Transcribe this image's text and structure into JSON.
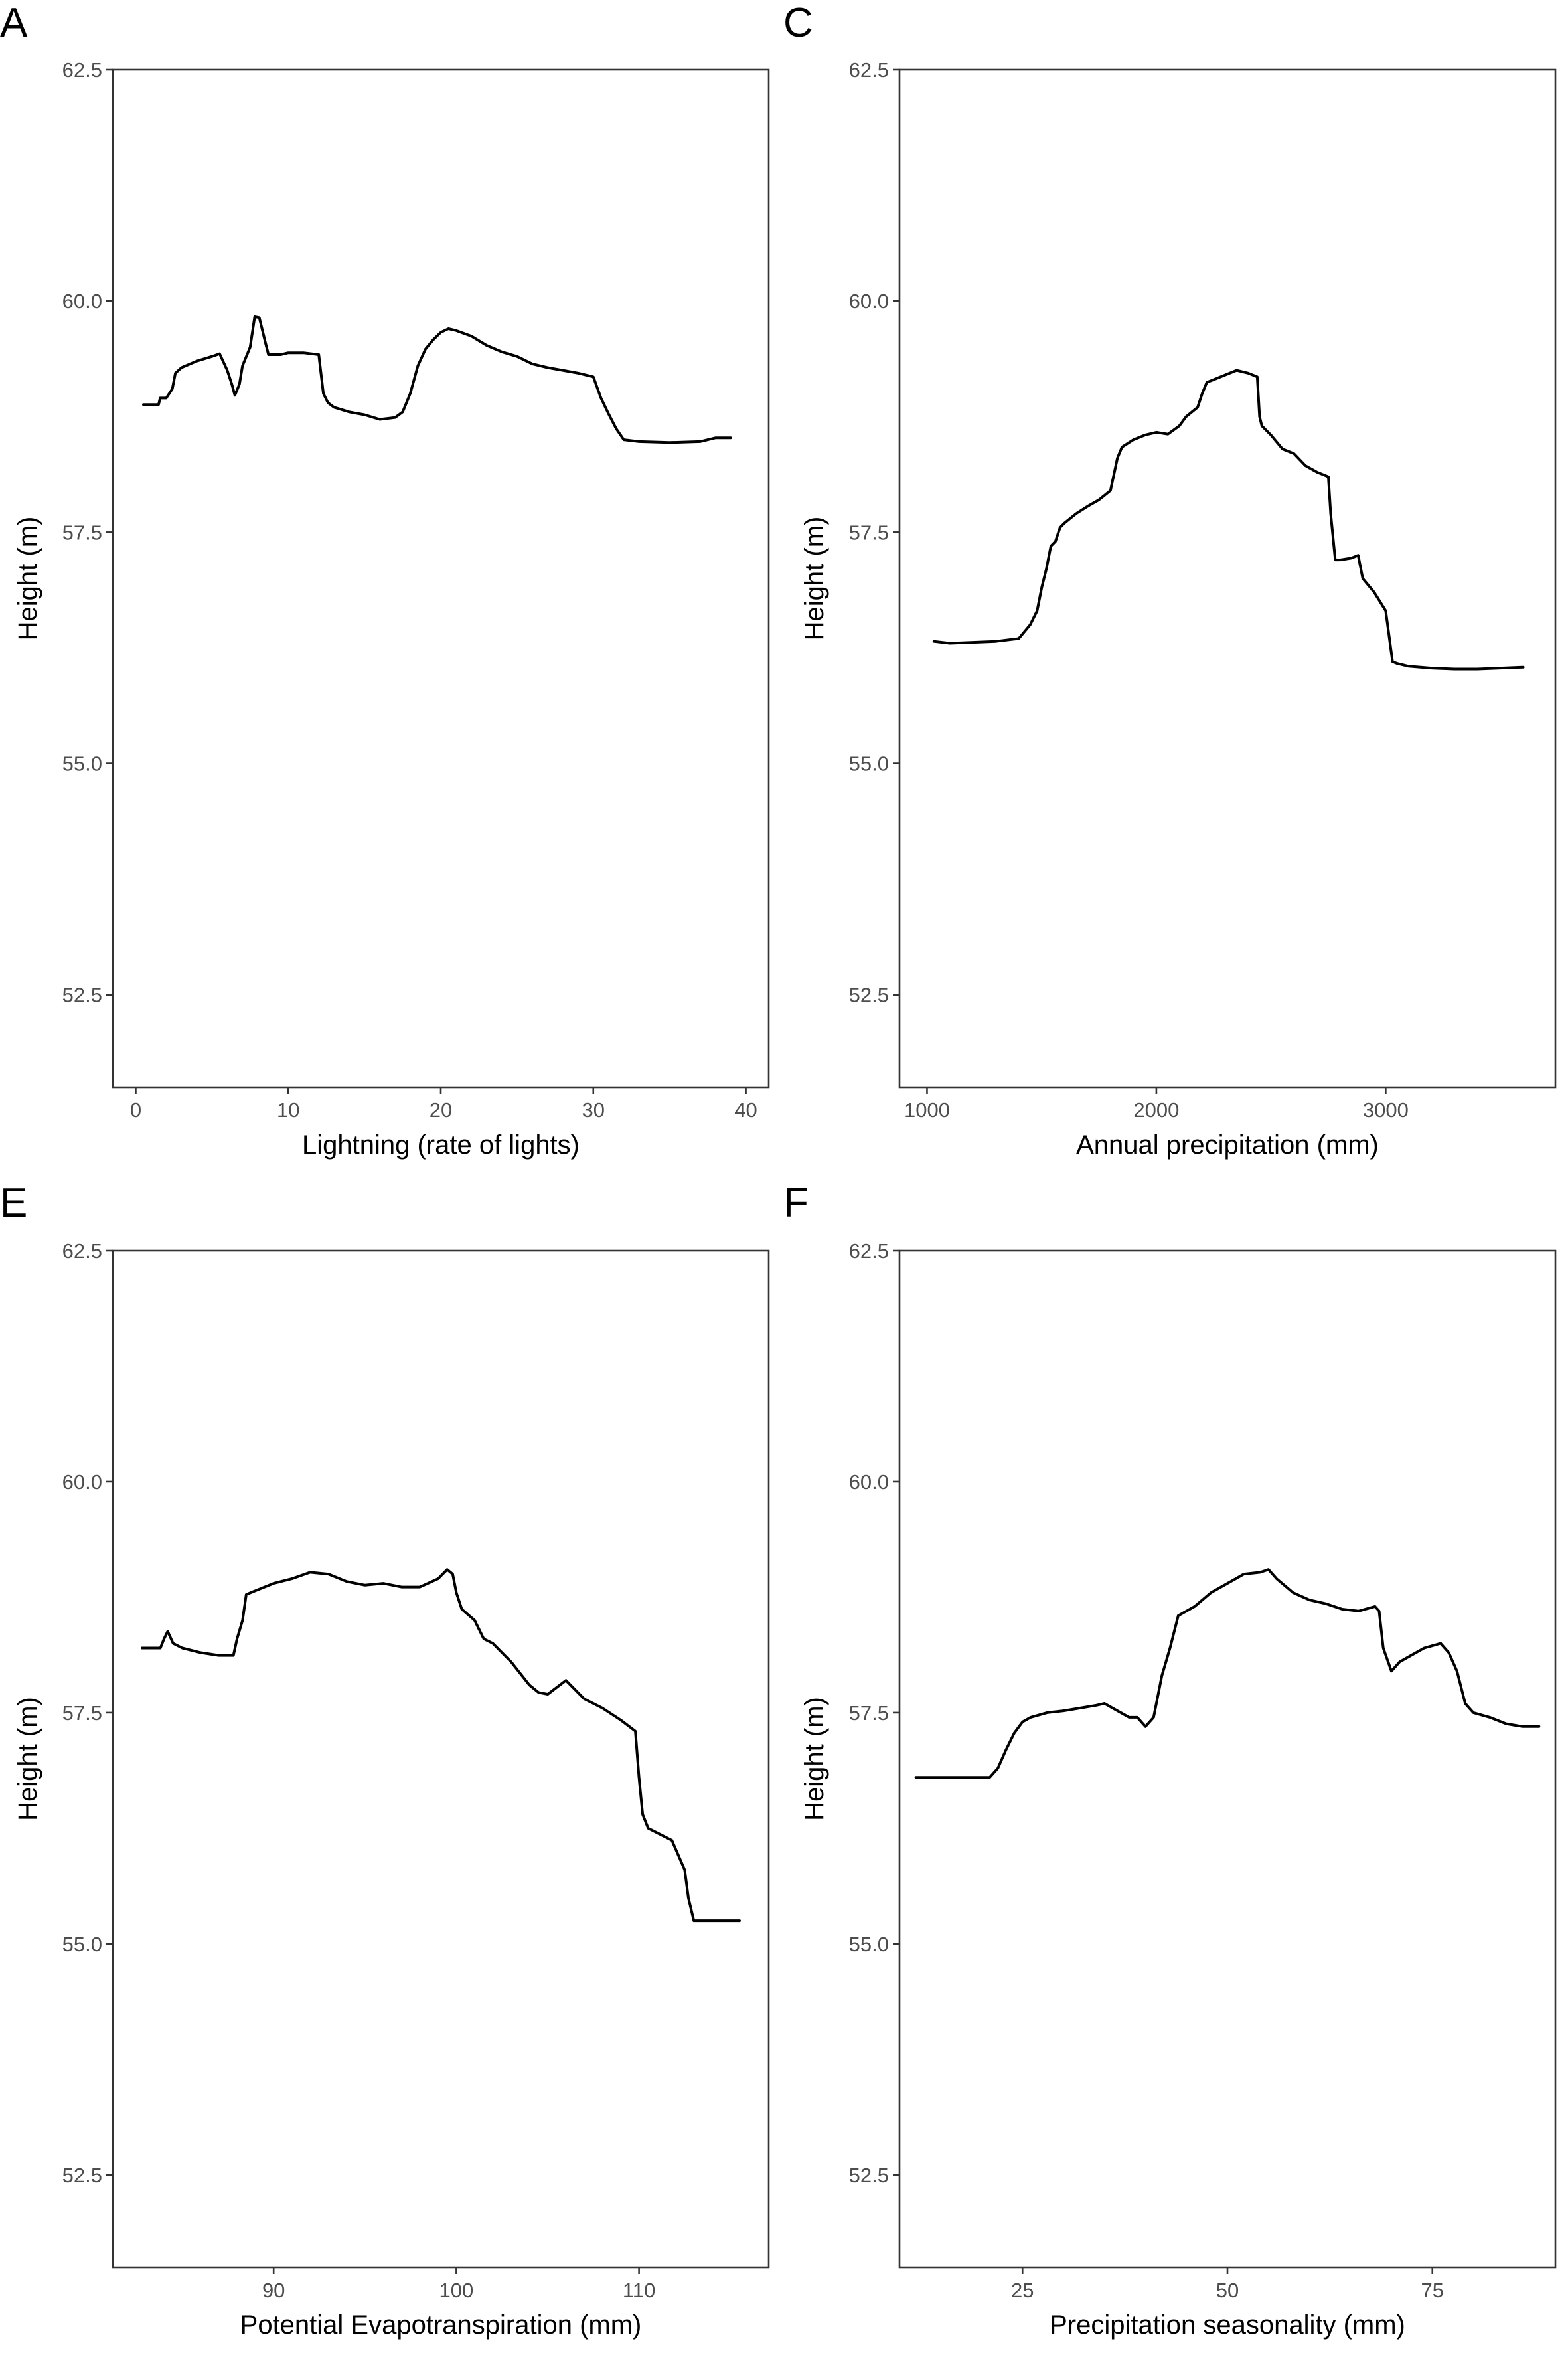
{
  "chart_data": [
    {
      "type": "line",
      "panel": "A",
      "xlabel": "Lightning (rate of lights)",
      "ylabel": "Height (m)",
      "xlim": [
        -1.5,
        41.5
      ],
      "ylim": [
        51.5,
        62.5
      ],
      "xticks": [
        0,
        10,
        20,
        30,
        40
      ],
      "yticks": [
        52.5,
        55.0,
        57.5,
        60.0,
        62.5
      ],
      "grid": false,
      "x": [
        0.5,
        1.5,
        1.6,
        2.0,
        2.4,
        2.6,
        3.0,
        4.0,
        5.0,
        5.5,
        6.0,
        6.3,
        6.5,
        6.8,
        7.0,
        7.5,
        7.8,
        8.1,
        8.5,
        8.7,
        9.0,
        9.5,
        10.0,
        11.0,
        12.0,
        12.3,
        12.6,
        13.0,
        14.0,
        15.0,
        16.0,
        17.0,
        17.5,
        18.0,
        18.5,
        19.0,
        19.5,
        20.0,
        20.5,
        21.0,
        22.0,
        23.0,
        24.0,
        25.0,
        26.0,
        27.0,
        28.0,
        29.0,
        30.0,
        30.5,
        31.0,
        31.5,
        32.0,
        33.0,
        35.0,
        37.0,
        38.0,
        39.0
      ],
      "y": [
        58.88,
        58.88,
        58.95,
        58.95,
        59.05,
        59.22,
        59.28,
        59.35,
        59.4,
        59.43,
        59.25,
        59.1,
        58.98,
        59.1,
        59.3,
        59.5,
        59.83,
        59.82,
        59.55,
        59.42,
        59.42,
        59.42,
        59.44,
        59.44,
        59.42,
        59.0,
        58.9,
        58.85,
        58.8,
        58.77,
        58.72,
        58.74,
        58.8,
        59.0,
        59.3,
        59.48,
        59.58,
        59.66,
        59.7,
        59.68,
        59.62,
        59.52,
        59.45,
        59.4,
        59.32,
        59.28,
        59.25,
        59.22,
        59.18,
        58.95,
        58.78,
        58.62,
        58.5,
        58.48,
        58.47,
        58.48,
        58.52,
        58.52
      ]
    },
    {
      "type": "line",
      "panel": "C",
      "xlabel": "Annual precipitation (mm)",
      "ylabel": "Height (m)",
      "xlim": [
        880,
        3740
      ],
      "ylim": [
        51.5,
        62.5
      ],
      "xticks": [
        1000,
        2000,
        3000
      ],
      "yticks": [
        52.5,
        55.0,
        57.5,
        60.0,
        62.5
      ],
      "grid": false,
      "x": [
        1030,
        1100,
        1200,
        1300,
        1400,
        1450,
        1480,
        1500,
        1520,
        1540,
        1560,
        1580,
        1600,
        1650,
        1700,
        1750,
        1800,
        1830,
        1850,
        1900,
        1950,
        2000,
        2050,
        2100,
        2130,
        2180,
        2200,
        2220,
        2250,
        2300,
        2350,
        2400,
        2440,
        2450,
        2460,
        2500,
        2550,
        2600,
        2650,
        2700,
        2750,
        2760,
        2780,
        2800,
        2850,
        2880,
        2900,
        2950,
        3000,
        3030,
        3050,
        3100,
        3200,
        3300,
        3400,
        3500,
        3600
      ],
      "y": [
        56.32,
        56.3,
        56.31,
        56.32,
        56.35,
        56.5,
        56.65,
        56.9,
        57.1,
        57.35,
        57.4,
        57.55,
        57.6,
        57.7,
        57.78,
        57.85,
        57.95,
        58.3,
        58.42,
        58.5,
        58.55,
        58.58,
        58.56,
        58.65,
        58.75,
        58.85,
        59.0,
        59.12,
        59.15,
        59.2,
        59.25,
        59.22,
        59.18,
        58.75,
        58.65,
        58.55,
        58.4,
        58.35,
        58.22,
        58.15,
        58.1,
        57.7,
        57.2,
        57.2,
        57.22,
        57.25,
        57.0,
        56.85,
        56.65,
        56.1,
        56.08,
        56.05,
        56.03,
        56.02,
        56.02,
        56.03,
        56.04
      ]
    },
    {
      "type": "line",
      "panel": "E",
      "xlabel": "Potential Evapotranspiration (mm)",
      "ylabel": "Height (m)",
      "xlim": [
        81.2,
        117.1
      ],
      "ylim": [
        51.5,
        62.5
      ],
      "xticks": [
        90,
        100,
        110
      ],
      "yticks": [
        52.5,
        55.0,
        57.5,
        60.0,
        62.5
      ],
      "grid": false,
      "x": [
        82.8,
        83.8,
        84.0,
        84.2,
        84.5,
        85.0,
        86.0,
        87.0,
        87.8,
        88.0,
        88.3,
        88.5,
        89.0,
        90.0,
        91.0,
        92.0,
        93.0,
        94.0,
        95.0,
        96.0,
        97.0,
        98.0,
        99.0,
        99.5,
        99.8,
        100.0,
        100.3,
        101.0,
        101.5,
        102.0,
        103.0,
        104.0,
        104.5,
        105.0,
        106.0,
        107.0,
        108.0,
        109.0,
        109.8,
        110.0,
        110.2,
        110.5,
        111.0,
        111.8,
        112.5,
        112.7,
        113.0,
        114.0,
        115.5
      ],
      "y": [
        58.2,
        58.2,
        58.3,
        58.38,
        58.25,
        58.2,
        58.15,
        58.12,
        58.12,
        58.3,
        58.5,
        58.78,
        58.82,
        58.9,
        58.95,
        59.02,
        59.0,
        58.92,
        58.88,
        58.9,
        58.86,
        58.86,
        58.95,
        59.05,
        59.0,
        58.8,
        58.62,
        58.5,
        58.3,
        58.25,
        58.05,
        57.8,
        57.72,
        57.7,
        57.85,
        57.65,
        57.55,
        57.42,
        57.3,
        56.8,
        56.4,
        56.25,
        56.2,
        56.12,
        55.8,
        55.5,
        55.25,
        55.25,
        55.25
      ]
    },
    {
      "type": "line",
      "panel": "F",
      "xlabel": "Precipitation seasonality (mm)",
      "ylabel": "Height (m)",
      "xlim": [
        10,
        90
      ],
      "ylim": [
        51.5,
        62.5
      ],
      "xticks": [
        25,
        50,
        75
      ],
      "yticks": [
        52.5,
        55.0,
        57.5,
        60.0,
        62.5
      ],
      "grid": false,
      "x": [
        12,
        15,
        18,
        21,
        22,
        23,
        24,
        25,
        26,
        28,
        30,
        32,
        34,
        35,
        36,
        38,
        39,
        40,
        41,
        42,
        43,
        44,
        46,
        48,
        50,
        52,
        54,
        55,
        56,
        58,
        60,
        62,
        64,
        66,
        68,
        68.5,
        69,
        70,
        71,
        72,
        74,
        76,
        77,
        78,
        79,
        80,
        82,
        84,
        86,
        88
      ],
      "y": [
        56.8,
        56.8,
        56.8,
        56.8,
        56.9,
        57.1,
        57.28,
        57.4,
        57.45,
        57.5,
        57.52,
        57.55,
        57.58,
        57.6,
        57.55,
        57.45,
        57.45,
        57.35,
        57.45,
        57.9,
        58.2,
        58.55,
        58.65,
        58.8,
        58.9,
        59.0,
        59.02,
        59.05,
        58.95,
        58.8,
        58.72,
        58.68,
        58.62,
        58.6,
        58.65,
        58.6,
        58.2,
        57.95,
        58.05,
        58.1,
        58.2,
        58.25,
        58.15,
        57.95,
        57.6,
        57.5,
        57.45,
        57.38,
        57.35,
        57.35
      ]
    }
  ]
}
